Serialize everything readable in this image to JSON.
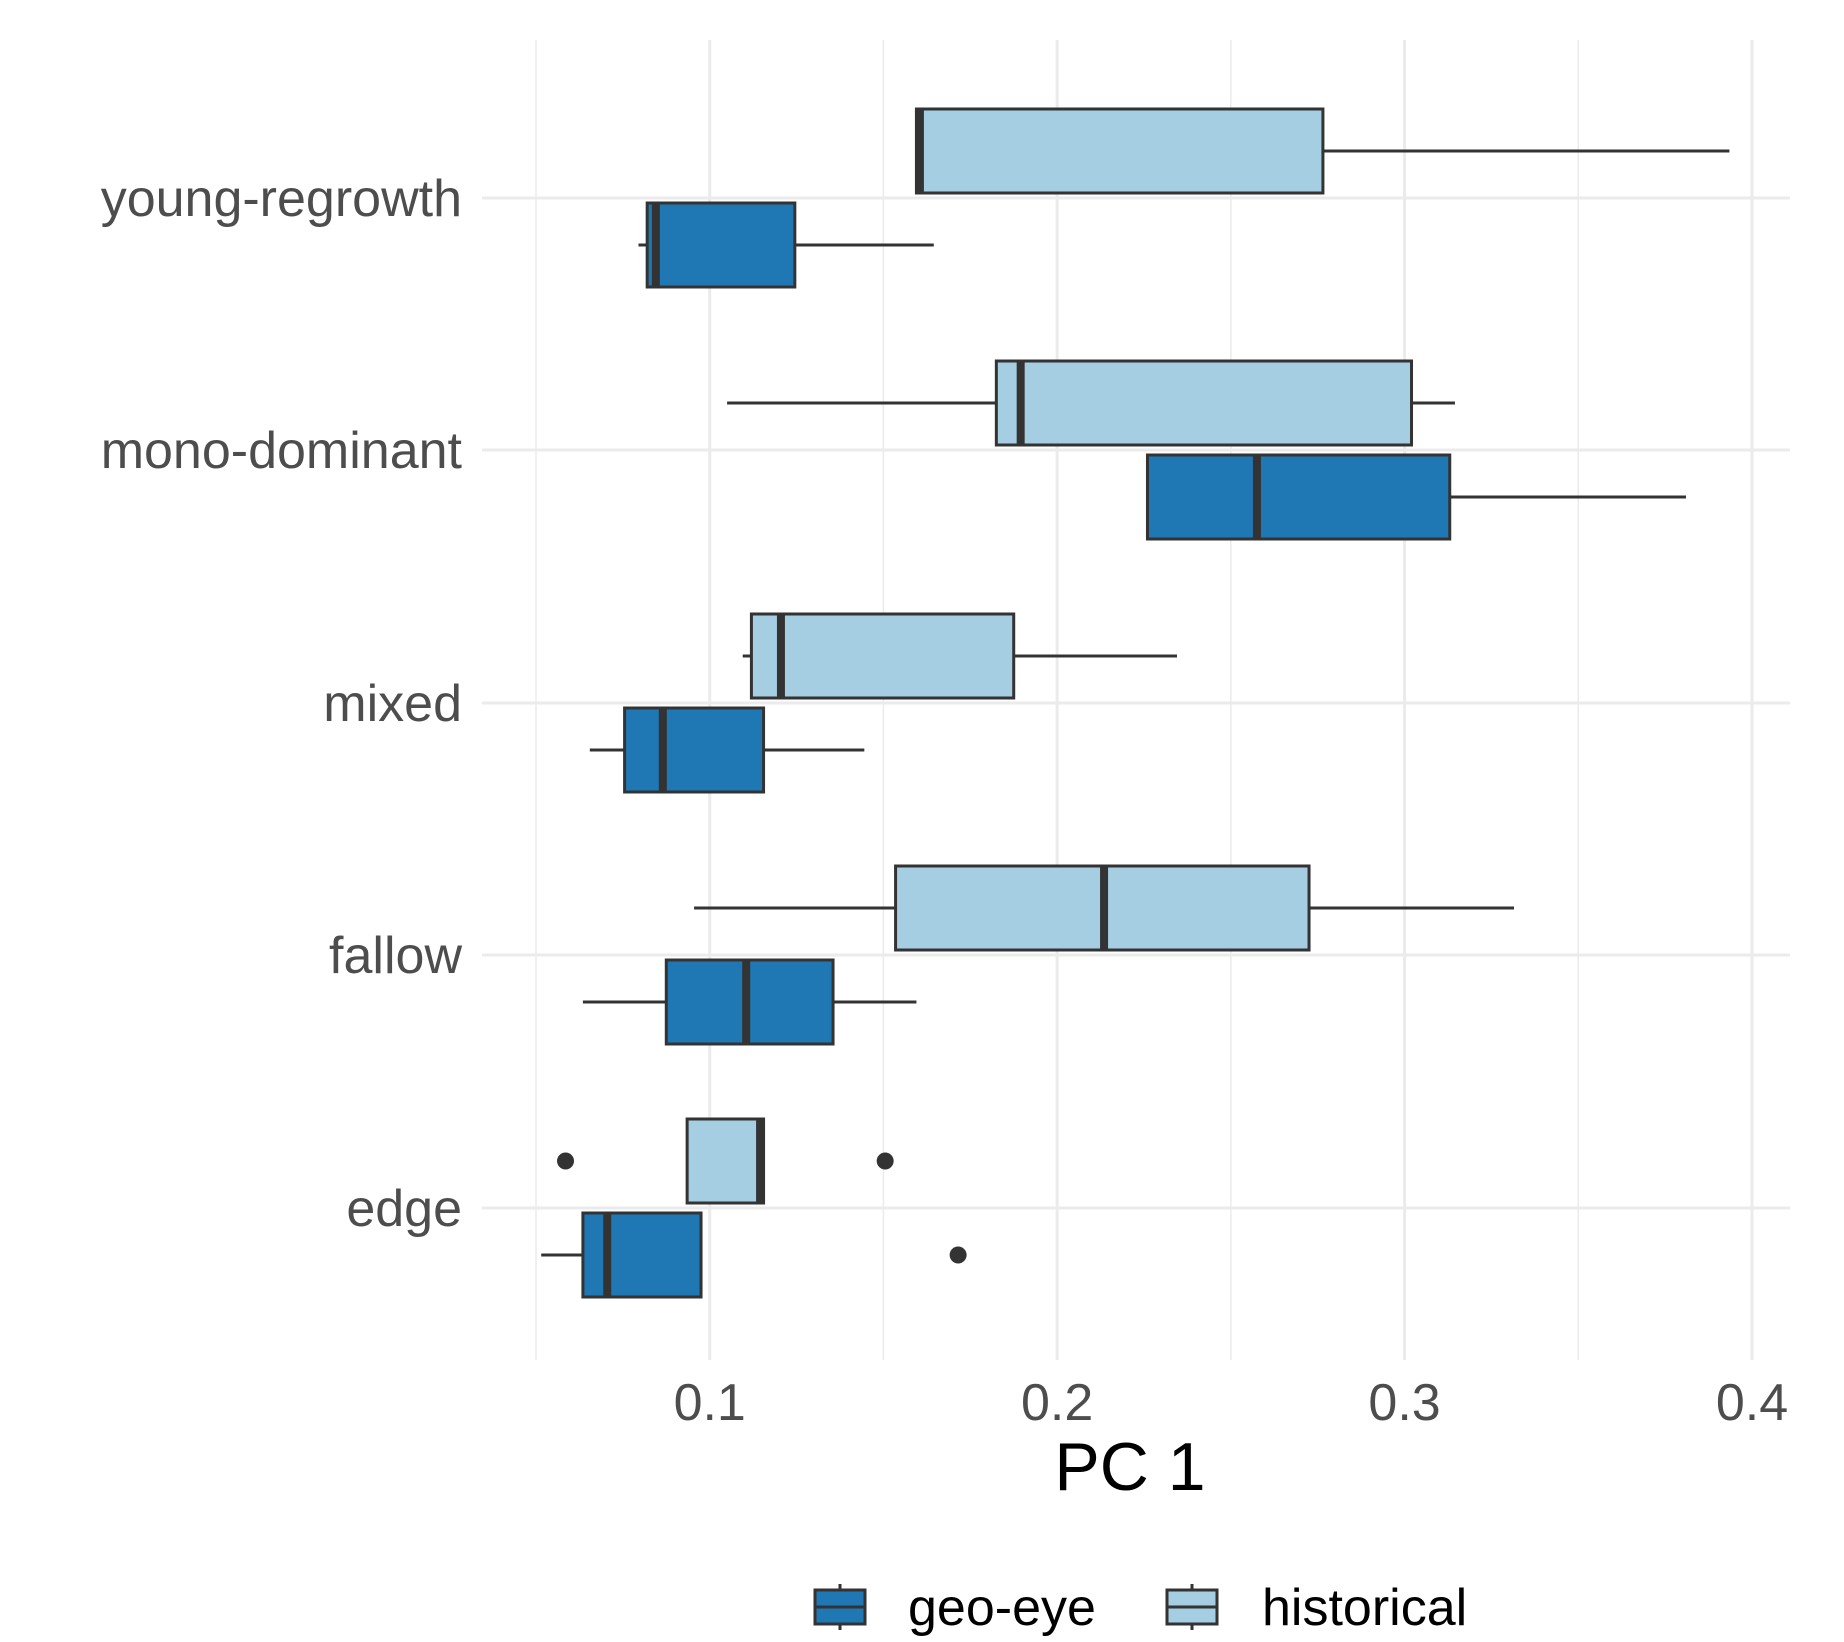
{
  "chart_data": {
    "type": "boxplot",
    "orientation": "horizontal",
    "title": "",
    "xlabel": "PC 1",
    "ylabel": "",
    "xlim": [
      0.05,
      0.4
    ],
    "x_ticks": [
      0.1,
      0.2,
      0.3,
      0.4
    ],
    "x_tick_labels": [
      "0.1",
      "0.2",
      "0.3",
      "0.4"
    ],
    "categories": [
      "young-regrowth",
      "mono-dominant",
      "mixed",
      "fallow",
      "edge"
    ],
    "legend_position": "bottom",
    "series": [
      {
        "name": "geo-eye",
        "color": "#1f78b4",
        "boxes": [
          {
            "category": "young-regrowth",
            "whisker_low": 0.0795,
            "q1": 0.082,
            "median": 0.0845,
            "q3": 0.1245,
            "whisker_high": 0.1645,
            "outliers": []
          },
          {
            "category": "mono-dominant",
            "whisker_low": 0.226,
            "q1": 0.226,
            "median": 0.2575,
            "q3": 0.313,
            "whisker_high": 0.381,
            "outliers": []
          },
          {
            "category": "mixed",
            "whisker_low": 0.0655,
            "q1": 0.0755,
            "median": 0.0865,
            "q3": 0.1155,
            "whisker_high": 0.1445,
            "outliers": []
          },
          {
            "category": "fallow",
            "whisker_low": 0.0635,
            "q1": 0.0875,
            "median": 0.1105,
            "q3": 0.1355,
            "whisker_high": 0.1595,
            "outliers": []
          },
          {
            "category": "edge",
            "whisker_low": 0.0515,
            "q1": 0.0635,
            "median": 0.0705,
            "q3": 0.0975,
            "whisker_high": 0.0975,
            "outliers": [
              0.1715
            ]
          }
        ]
      },
      {
        "name": "historical",
        "color": "#a6cee3",
        "boxes": [
          {
            "category": "young-regrowth",
            "whisker_low": 0.1595,
            "q1": 0.1595,
            "median": 0.1605,
            "q3": 0.2765,
            "whisker_high": 0.3935,
            "outliers": []
          },
          {
            "category": "mono-dominant",
            "whisker_low": 0.105,
            "q1": 0.1825,
            "median": 0.1895,
            "q3": 0.302,
            "whisker_high": 0.3145,
            "outliers": []
          },
          {
            "category": "mixed",
            "whisker_low": 0.1095,
            "q1": 0.112,
            "median": 0.1205,
            "q3": 0.1875,
            "whisker_high": 0.2345,
            "outliers": []
          },
          {
            "category": "fallow",
            "whisker_low": 0.0955,
            "q1": 0.1535,
            "median": 0.2135,
            "q3": 0.2725,
            "whisker_high": 0.3315,
            "outliers": []
          },
          {
            "category": "edge",
            "whisker_low": 0.0935,
            "q1": 0.0935,
            "median": 0.1145,
            "q3": 0.1155,
            "whisker_high": 0.1155,
            "outliers": [
              0.0585,
              0.1505
            ]
          }
        ]
      }
    ]
  },
  "legend": {
    "items": [
      {
        "label": "geo-eye",
        "color": "#1f78b4"
      },
      {
        "label": "historical",
        "color": "#a6cee3"
      }
    ]
  }
}
